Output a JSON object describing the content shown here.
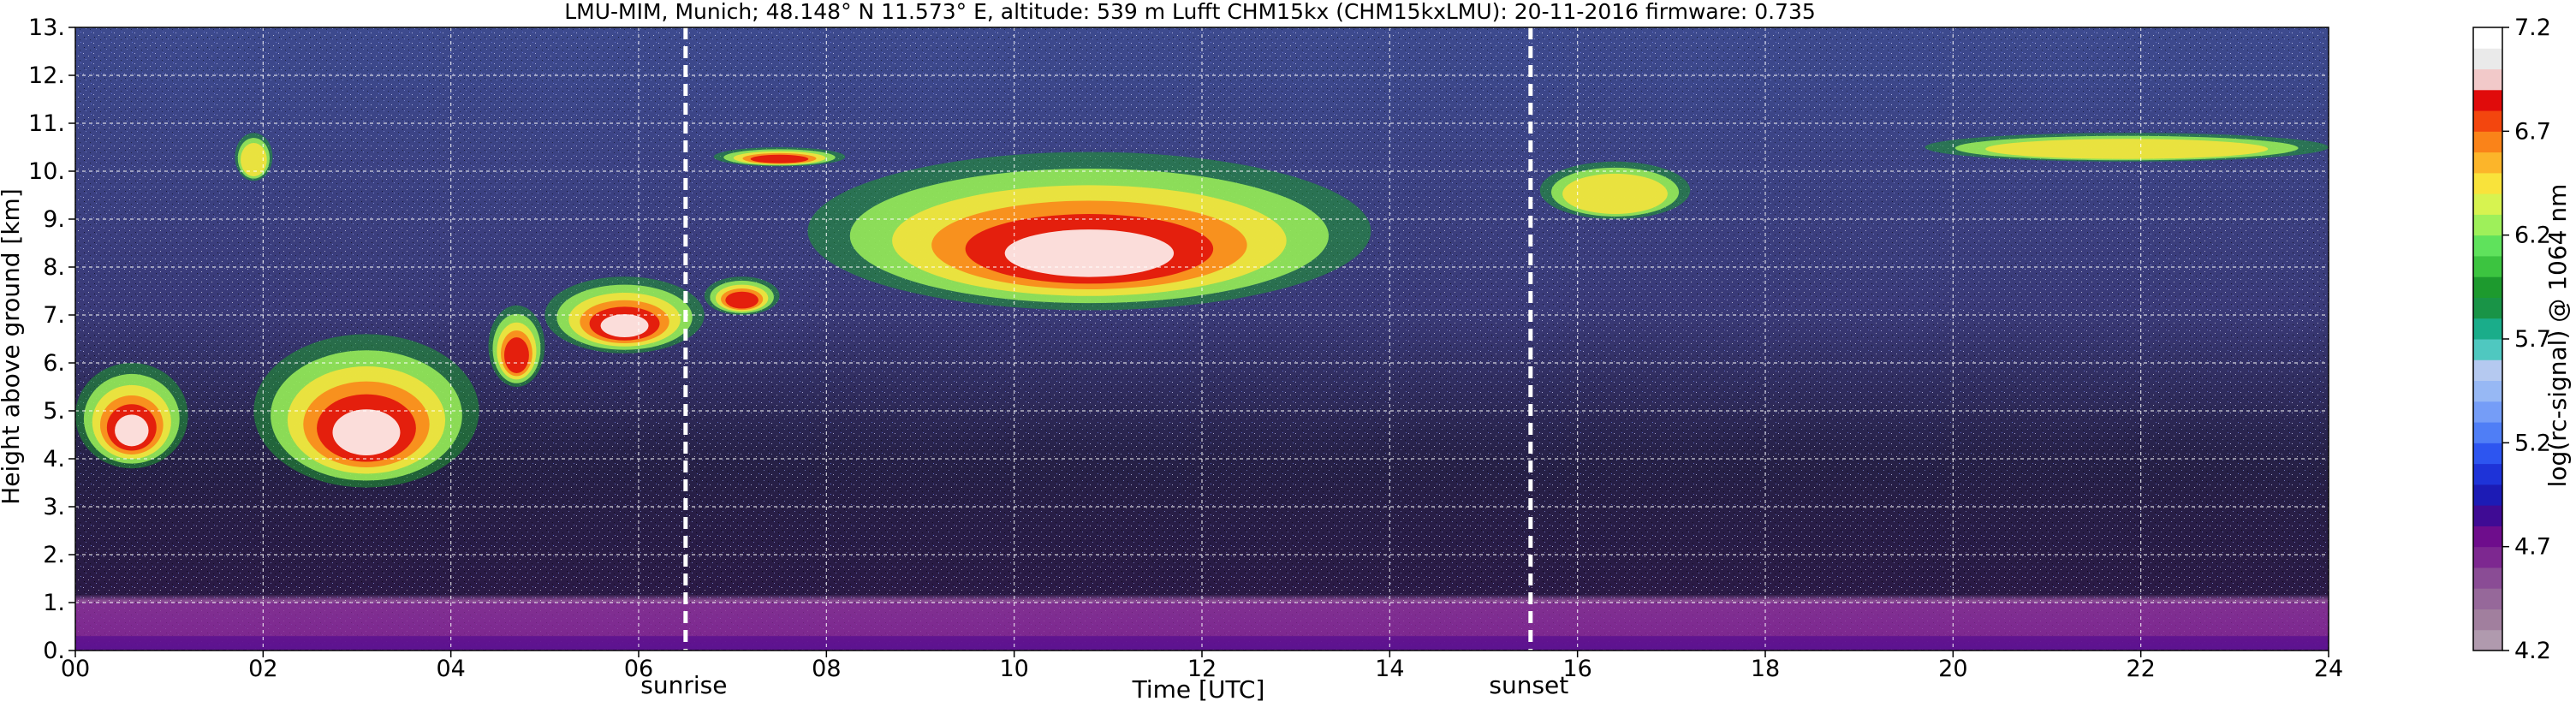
{
  "title": "LMU-MIM, Munich; 48.148° N 11.573° E, altitude: 539 m    Lufft CHM15kx (CHM15kxLMU): 20-11-2016    firmware: 0.735",
  "chart_data": {
    "type": "heatmap",
    "xlabel": "Time [UTC]",
    "ylabel": "Height above ground [km]",
    "xlim": [
      0,
      24
    ],
    "ylim": [
      0,
      13
    ],
    "x_ticks": [
      "00",
      "02",
      "04",
      "06",
      "08",
      "10",
      "12",
      "14",
      "16",
      "18",
      "20",
      "22",
      "24"
    ],
    "y_ticks": [
      "0.",
      "1.",
      "2.",
      "3.",
      "4.",
      "5.",
      "6.",
      "7.",
      "8.",
      "9.",
      "10.",
      "11.",
      "12.",
      "13."
    ],
    "grid": true,
    "colorbar": {
      "label": "log(rc-signal) @ 1064 nm",
      "range": [
        4.2,
        7.2
      ],
      "ticks": [
        "4.2",
        "4.7",
        "5.2",
        "5.7",
        "6.2",
        "6.7",
        "7.2"
      ],
      "colors": [
        "#b09aae",
        "#a17f9e",
        "#96689a",
        "#8a4c95",
        "#7d2890",
        "#6e0d8c",
        "#3f0b94",
        "#1c1bb5",
        "#1e33d8",
        "#2d55f0",
        "#4f7ef6",
        "#759df7",
        "#97b8f4",
        "#b5c9f0",
        "#4fc8c0",
        "#1aad8a",
        "#199447",
        "#1d9a2e",
        "#3cc440",
        "#5fe25c",
        "#9ef05a",
        "#d7f350",
        "#f9e33b",
        "#fcb52a",
        "#fa8319",
        "#f3460e",
        "#e00b0b",
        "#f2c9c9",
        "#eaeaea",
        "#ffffff"
      ]
    },
    "events": [
      {
        "label": "sunrise",
        "time": 6.5
      },
      {
        "label": "sunset",
        "time": 15.5
      }
    ],
    "cloud_layers": [
      {
        "t_start": 0.0,
        "t_end": 1.2,
        "base_km": 3.8,
        "top_km": 6.0,
        "intensity": 1.0
      },
      {
        "t_start": 1.9,
        "t_end": 4.3,
        "base_km": 3.4,
        "top_km": 6.6,
        "intensity": 1.0
      },
      {
        "t_start": 4.4,
        "t_end": 5.0,
        "base_km": 5.5,
        "top_km": 7.2,
        "intensity": 0.7
      },
      {
        "t_start": 5.0,
        "t_end": 6.7,
        "base_km": 6.2,
        "top_km": 7.8,
        "intensity": 0.9
      },
      {
        "t_start": 6.7,
        "t_end": 7.5,
        "base_km": 7.0,
        "top_km": 7.8,
        "intensity": 0.8
      },
      {
        "t_start": 7.8,
        "t_end": 13.8,
        "base_km": 7.1,
        "top_km": 10.4,
        "intensity": 0.95
      },
      {
        "t_start": 6.8,
        "t_end": 8.2,
        "base_km": 10.1,
        "top_km": 10.5,
        "intensity": 0.7
      },
      {
        "t_start": 15.6,
        "t_end": 17.2,
        "base_km": 9.0,
        "top_km": 10.2,
        "intensity": 0.6
      },
      {
        "t_start": 19.7,
        "t_end": 24.0,
        "base_km": 10.2,
        "top_km": 10.8,
        "intensity": 0.5
      },
      {
        "t_start": 1.7,
        "t_end": 2.1,
        "base_km": 9.8,
        "top_km": 10.8,
        "intensity": 0.5
      }
    ],
    "boundary_layer": {
      "top_km": 1.0,
      "dense_top_km": 0.3
    }
  }
}
